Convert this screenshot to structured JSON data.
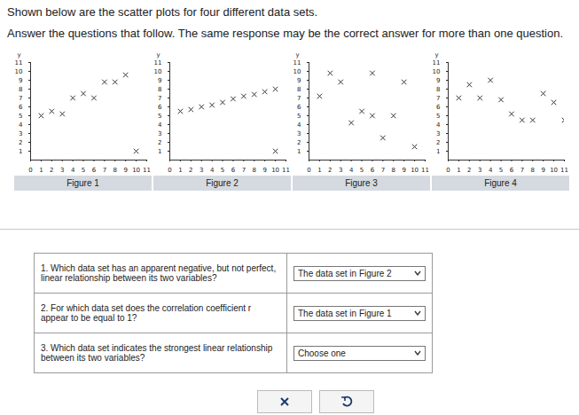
{
  "page": {
    "heading": "Shown below are the scatter plots for four different data sets.",
    "instructions": "Answer the questions that follow. The same response may be the correct answer for more than one question.",
    "questions": [
      {
        "question": "1. Which data set has an apparent negative, but not perfect, linear relationship between its two variables?",
        "answer": "The data set in Figure 2"
      },
      {
        "question": "2. For which data set does the correlation coefficient r appear to be equal to 1?",
        "answer": "The data set in Figure 1"
      },
      {
        "question": "3. Which data set indicates the strongest linear relationship between its two variables?",
        "answer": "Choose one"
      }
    ]
  },
  "chart_data": [
    {
      "type": "scatter",
      "title": "Figure 1",
      "y_label": "y",
      "x": [
        1,
        2,
        3,
        4,
        5,
        6,
        7,
        8,
        9,
        10
      ],
      "values": [
        5,
        5.5,
        5.2,
        7,
        7.5,
        7,
        8.8,
        8.8,
        9.6,
        1
      ],
      "xlim": [
        0,
        11
      ],
      "ylim": [
        0,
        11
      ],
      "xticks": [
        0,
        1,
        2,
        3,
        4,
        5,
        6,
        7,
        8,
        9,
        10,
        11
      ],
      "yticks": [
        1,
        2,
        3,
        4,
        5,
        6,
        7,
        8,
        9,
        10,
        11
      ],
      "marker": "x",
      "color": "#333333"
    },
    {
      "type": "scatter",
      "title": "Figure 2",
      "y_label": "y",
      "x": [
        1,
        2,
        3,
        4,
        5,
        6,
        7,
        8,
        9,
        10,
        10
      ],
      "values": [
        5.5,
        5.7,
        6,
        6.2,
        6.5,
        6.9,
        7.2,
        7.4,
        7.7,
        8,
        1
      ],
      "xlim": [
        0,
        11
      ],
      "ylim": [
        0,
        11
      ],
      "xticks": [
        0,
        1,
        2,
        3,
        4,
        5,
        6,
        7,
        8,
        9,
        10,
        11
      ],
      "yticks": [
        1,
        2,
        3,
        4,
        5,
        6,
        7,
        8,
        9,
        10,
        11
      ],
      "marker": "x",
      "color": "#333333"
    },
    {
      "type": "scatter",
      "title": "Figure 3",
      "y_label": "y",
      "x": [
        1,
        2,
        3,
        4,
        5,
        6,
        6,
        7,
        8,
        9,
        10
      ],
      "values": [
        7.2,
        9.8,
        8.8,
        4.2,
        5.5,
        9.8,
        5,
        2.5,
        5,
        8.8,
        1.5
      ],
      "xlim": [
        0,
        11
      ],
      "ylim": [
        0,
        11
      ],
      "xticks": [
        0,
        1,
        2,
        3,
        4,
        5,
        6,
        7,
        8,
        9,
        10,
        11
      ],
      "yticks": [
        1,
        2,
        3,
        4,
        5,
        6,
        7,
        8,
        9,
        10,
        11
      ],
      "marker": "x",
      "color": "#333333"
    },
    {
      "type": "scatter",
      "title": "Figure 4",
      "y_label": "y",
      "x": [
        1,
        2,
        3,
        4,
        5,
        6,
        7,
        8,
        9,
        10,
        11
      ],
      "values": [
        7,
        8.5,
        7,
        9,
        6.8,
        5.2,
        4.5,
        4.5,
        7.5,
        6.5,
        4.5
      ],
      "xlim": [
        0,
        11
      ],
      "ylim": [
        0,
        11
      ],
      "xticks": [
        0,
        1,
        2,
        3,
        4,
        5,
        6,
        7,
        8,
        9,
        10,
        11
      ],
      "yticks": [
        1,
        2,
        3,
        4,
        5,
        6,
        7,
        8,
        9,
        10,
        11
      ],
      "marker": "x",
      "color": "#333333"
    }
  ]
}
